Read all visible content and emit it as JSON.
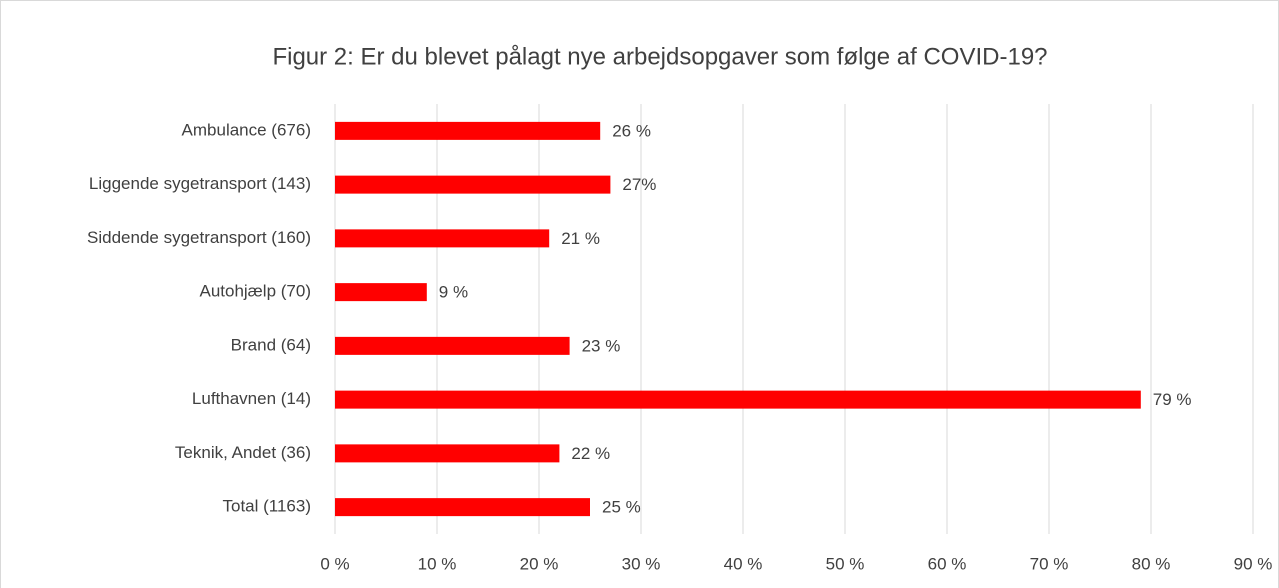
{
  "chart_data": {
    "type": "bar",
    "orientation": "horizontal",
    "title": "Figur 2: Er du blevet pålagt nye arbejdsopgaver som følge af COVID-19?",
    "categories": [
      "Ambulance (676)",
      "Liggende sygetransport (143)",
      "Siddende sygetransport (160)",
      "Autohjælp (70)",
      "Brand (64)",
      "Lufthavnen (14)",
      "Teknik, Andet (36)",
      "Total (1163)"
    ],
    "values": [
      26,
      27,
      21,
      9,
      23,
      79,
      22,
      25
    ],
    "value_labels": [
      "26 %",
      "27%",
      "21 %",
      "9 %",
      "23 %",
      "79 %",
      "22 %",
      "25 %"
    ],
    "color": "#ff0000",
    "xlim": [
      0,
      90
    ],
    "xticks": [
      {
        "value": 0,
        "label": "0 %"
      },
      {
        "value": 10,
        "label": "10 %"
      },
      {
        "value": 20,
        "label": "20 %"
      },
      {
        "value": 30,
        "label": "30 %"
      },
      {
        "value": 40,
        "label": "40 %"
      },
      {
        "value": 50,
        "label": "50 %"
      },
      {
        "value": 60,
        "label": "60 %"
      },
      {
        "value": 70,
        "label": "70 %"
      },
      {
        "value": 80,
        "label": "80 %"
      },
      {
        "value": 90,
        "label": "90 %"
      }
    ],
    "grid": true
  }
}
